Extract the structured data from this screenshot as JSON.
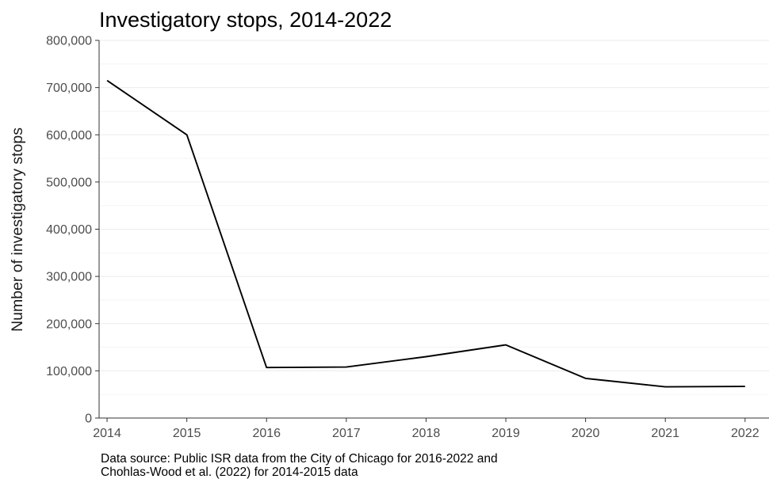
{
  "chart_data": {
    "type": "line",
    "title": "Investigatory stops, 2014-2022",
    "ylabel": "Number of investigatory stops",
    "xlabel": "",
    "caption": [
      "Data source: Public ISR data from the City of Chicago for 2016-2022 and",
      "Chohlas-Wood et al. (2022) for 2014-2015 data"
    ],
    "x": [
      2014,
      2015,
      2016,
      2017,
      2018,
      2019,
      2020,
      2021,
      2022
    ],
    "y": [
      715000,
      600000,
      107000,
      108000,
      130000,
      155000,
      84000,
      66000,
      67000
    ],
    "xlim": [
      2013.9,
      2022.3
    ],
    "ylim": [
      0,
      800000
    ],
    "y_ticks": [
      0,
      100000,
      200000,
      300000,
      400000,
      500000,
      600000,
      700000,
      800000
    ],
    "y_tick_labels": [
      "0",
      "100,000",
      "200,000",
      "300,000",
      "400,000",
      "500,000",
      "600,000",
      "700,000",
      "800,000"
    ],
    "x_ticks": [
      2014,
      2015,
      2016,
      2017,
      2018,
      2019,
      2020,
      2021,
      2022
    ],
    "x_tick_labels": [
      "2014",
      "2015",
      "2016",
      "2017",
      "2018",
      "2019",
      "2020",
      "2021",
      "2022"
    ],
    "grid": true,
    "legend": "none",
    "line_color": "#000000"
  }
}
